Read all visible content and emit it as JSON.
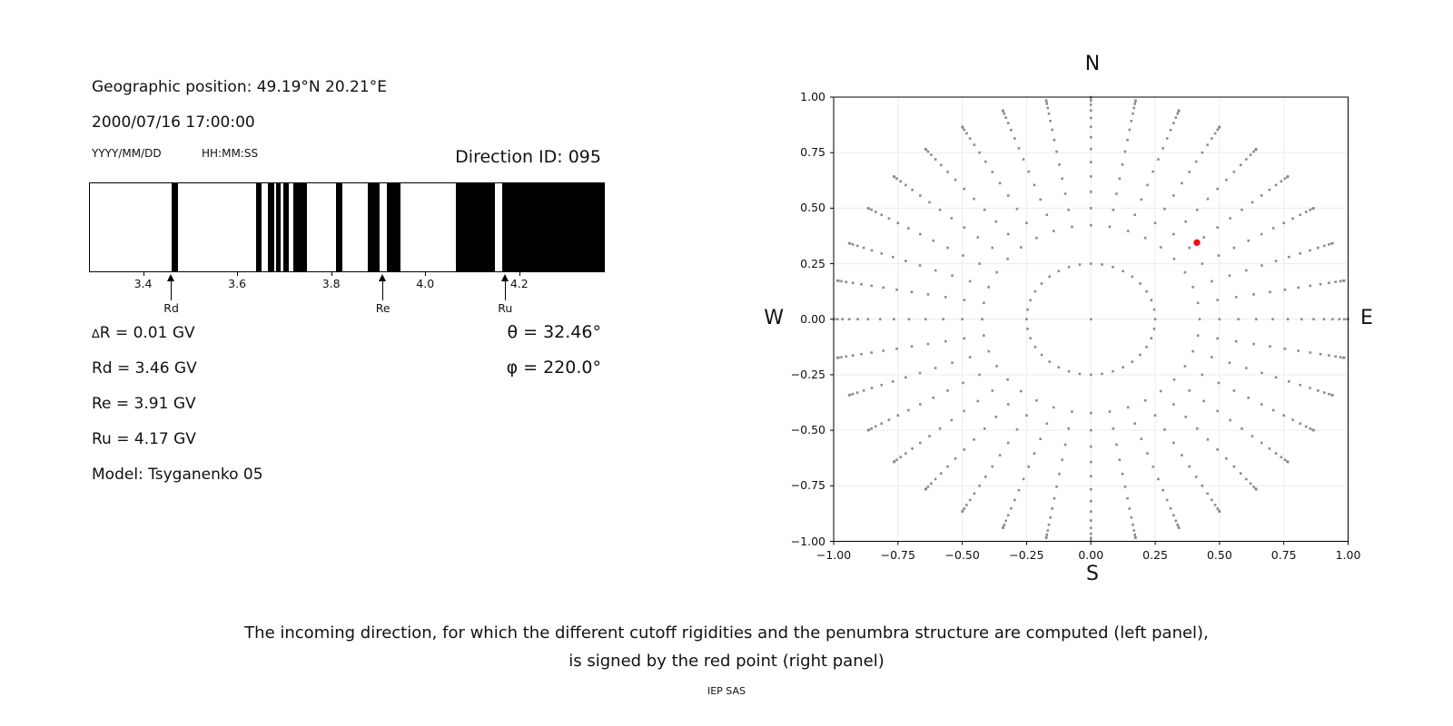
{
  "header": {
    "geo_position": "Geographic position: 49.19°N 20.21°E",
    "datetime": "2000/07/16 17:00:00",
    "date_format_label": "YYYY/MM/DD",
    "time_format_label": "HH:MM:SS",
    "direction_id": "Direction ID: 095"
  },
  "cutoffs": {
    "delta_sym": "∆",
    "delta_rest": "R = 0.01 GV",
    "rd_line": "Rd = 3.46 GV",
    "re_line": "Re = 3.91 GV",
    "ru_line": "Ru = 4.17 GV",
    "model_line": "Model: Tsyganenko 05",
    "theta_line": "θ = 32.46°",
    "phi_line": "φ = 220.0°"
  },
  "caption": {
    "line1": "The incoming direction, for which the different cutoff rigidities and the penumbra structure are computed (left panel),",
    "line2": "is signed by the red point (right panel)"
  },
  "footer": "IEP SAS",
  "chart_data": [
    {
      "type": "bar",
      "name": "penumbra-structure",
      "xlim": [
        3.285,
        4.378
      ],
      "x_ticks": [
        3.4,
        3.6,
        3.8,
        4.0,
        4.2
      ],
      "x_tick_labels": [
        "3.4",
        "3.6",
        "3.8",
        "4.0",
        "4.2"
      ],
      "bands_gv": [
        [
          3.458,
          3.473
        ],
        [
          3.638,
          3.65
        ],
        [
          3.663,
          3.677
        ],
        [
          3.681,
          3.69
        ],
        [
          3.696,
          3.708
        ],
        [
          3.717,
          3.746
        ],
        [
          3.808,
          3.821
        ],
        [
          3.875,
          3.901
        ],
        [
          3.917,
          3.946
        ],
        [
          4.064,
          4.146
        ],
        [
          4.162,
          4.378
        ]
      ],
      "markers": [
        {
          "label": "Rd",
          "gv": 3.46
        },
        {
          "label": "Re",
          "gv": 3.91
        },
        {
          "label": "Ru",
          "gv": 4.17
        }
      ],
      "colors": {
        "band": "#000000",
        "background": "#ffffff"
      }
    },
    {
      "type": "scatter",
      "name": "incoming-direction-map",
      "xlim": [
        -1.0,
        1.0
      ],
      "ylim": [
        -1.0,
        1.0
      ],
      "x_tick_values": [
        -1.0,
        -0.75,
        -0.5,
        -0.25,
        0.0,
        0.25,
        0.5,
        0.75,
        1.0
      ],
      "y_tick_values": [
        1.0,
        0.75,
        0.5,
        0.25,
        0.0,
        -0.25,
        -0.5,
        -0.75,
        -1.0
      ],
      "x_tick_labels": [
        "−1.00",
        "−0.75",
        "−0.50",
        "−0.25",
        "0.00",
        "0.25",
        "0.50",
        "0.75",
        "1.00"
      ],
      "y_tick_labels": [
        "1.00",
        "0.75",
        "0.50",
        "0.25",
        "0.00",
        "−0.25",
        "−0.50",
        "−0.75",
        "−1.00"
      ],
      "compass": {
        "north": "N",
        "south": "S",
        "east": "E",
        "west": "W"
      },
      "grid_on": true,
      "grid_pattern": {
        "inner_ring_radius": 0.25,
        "ring_azimuth_step_deg": 10,
        "center_dot": true,
        "ray_azimuth_step_deg": 10,
        "ray_zenith_start_deg": 25,
        "ray_zenith_end_deg": 90,
        "ray_zenith_step_deg": 5,
        "radius_rule": "sin(zenith)"
      },
      "red_point": {
        "x": 0.412,
        "y": 0.345
      },
      "colors": {
        "dot": "#8c8c8c",
        "red_point": "#ee1111",
        "gridline": "#ececec",
        "frame": "#000000"
      }
    }
  ]
}
